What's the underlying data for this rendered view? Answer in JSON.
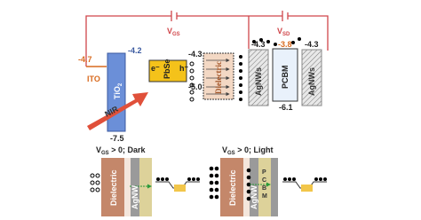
{
  "top": {
    "vgs": {
      "main": "V",
      "sub": "GS"
    },
    "vsd": {
      "main": "V",
      "sub": "SD"
    },
    "ito": {
      "label": "ITO",
      "level": "-4.7"
    },
    "tio2": {
      "main": "TiO",
      "sub": "2",
      "top": "-4.2",
      "bottom": "-7.5"
    },
    "nir": "NIR",
    "pbse": {
      "label": "PbSe",
      "electron": "e⁻",
      "hole": "h⁺",
      "top": "-4.3",
      "bottom": "-5.0"
    },
    "dielectric": "Dielectric",
    "agnws_left": {
      "label": "AgNWs",
      "level": "-4.3"
    },
    "pcbm": {
      "label": "PCBM",
      "top": "-3.8",
      "bottom": "-6.1"
    },
    "agnws_right": {
      "label": "AgNWs",
      "level": "-4.3"
    }
  },
  "bottom": [
    {
      "title": {
        "main": "V",
        "sub": "GS",
        "rest": " > 0; Dark"
      },
      "dielectric": "Dielectric",
      "agnw": "AgNW"
    },
    {
      "title": {
        "main": "V",
        "sub": "GS",
        "rest": " > 0; Light"
      },
      "dielectric": "Dielectric",
      "agnw": "AgNW",
      "pcbm": [
        "P",
        "C",
        "B",
        "M"
      ]
    }
  ]
}
